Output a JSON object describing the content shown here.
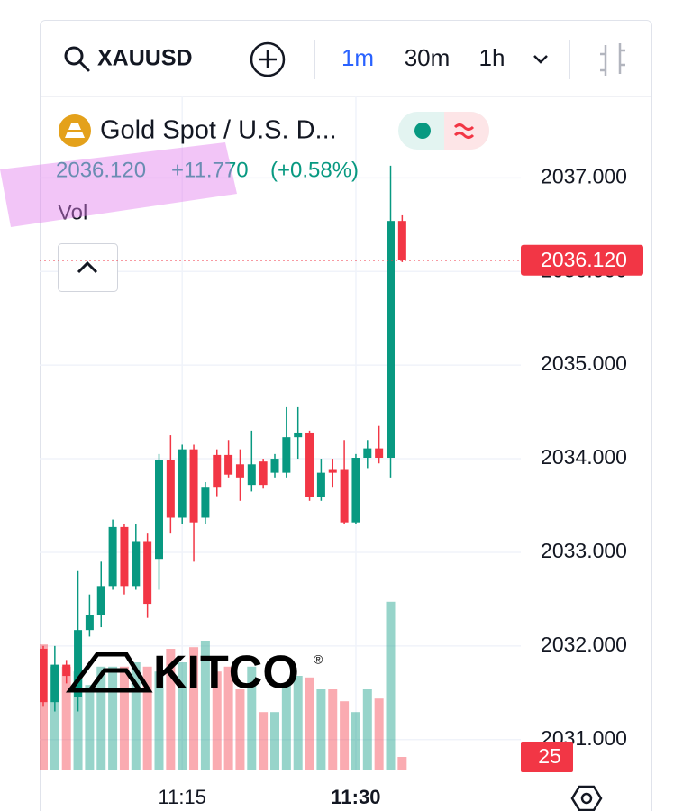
{
  "toolbar": {
    "symbol": "XAUUSD",
    "intervals": [
      "1m",
      "30m",
      "1h"
    ]
  },
  "legend": {
    "name": "Gold Spot / U.S. D...",
    "last": "2036.120",
    "change": "+11.770",
    "change_pct": "(+0.58%)",
    "volume_label": "Vol"
  },
  "watermark": {
    "text": "KITCO",
    "mark": "®"
  },
  "chart_data": {
    "type": "candlestick",
    "categories": [
      null,
      null,
      null,
      null,
      null,
      null,
      null,
      null,
      null,
      null,
      null,
      null,
      "11:15",
      null,
      null,
      null,
      null,
      null,
      null,
      null,
      null,
      null,
      null,
      null,
      null,
      null,
      null,
      "11:30",
      null,
      null,
      null,
      null
    ],
    "open": [
      2031.97,
      2031.4,
      2031.8,
      2031.45,
      2032.17,
      2032.33,
      2032.64,
      2033.27,
      2032.64,
      2033.12,
      2032.93,
      2033.99,
      2033.37,
      2034.1,
      2033.37,
      2034.04,
      2034.04,
      2033.94,
      2033.72,
      2033.97,
      2033.85,
      2033.85,
      2034.23,
      2034.28,
      2033.59,
      2033.88,
      2033.88,
      2033.32,
      2034.01,
      2034.11,
      2034.01,
      2036.54
    ],
    "high": [
      2032.0,
      2032.0,
      2031.85,
      2032.8,
      2032.55,
      2032.9,
      2033.35,
      2033.3,
      2033.3,
      2033.2,
      2034.05,
      2034.25,
      2034.15,
      2034.15,
      2033.75,
      2034.1,
      2034.2,
      2034.1,
      2034.3,
      2034.0,
      2034.05,
      2034.55,
      2034.55,
      2034.3,
      2034.0,
      2034.0,
      2034.2,
      2034.05,
      2034.2,
      2034.35,
      2037.13,
      2036.6
    ],
    "low": [
      2031.35,
      2031.3,
      2031.6,
      2031.3,
      2032.1,
      2032.2,
      2032.6,
      2032.55,
      2032.6,
      2032.3,
      2032.6,
      2033.2,
      2033.3,
      2032.9,
      2033.3,
      2033.6,
      2033.8,
      2033.55,
      2033.65,
      2033.68,
      2033.8,
      2033.8,
      2034.0,
      2033.55,
      2033.55,
      2033.7,
      2033.3,
      2033.3,
      2033.9,
      2033.95,
      2033.8,
      2036.1
    ],
    "close": [
      2031.4,
      2031.8,
      2031.68,
      2032.17,
      2032.33,
      2032.64,
      2033.27,
      2032.64,
      2033.12,
      2032.45,
      2033.99,
      2033.37,
      2034.1,
      2033.32,
      2033.7,
      2033.7,
      2033.83,
      2033.8,
      2033.94,
      2033.72,
      2034.0,
      2034.23,
      2034.28,
      2033.59,
      2033.85,
      2033.85,
      2033.32,
      2034.01,
      2034.11,
      2034.01,
      2036.54,
      2036.12
    ],
    "volume": [
      233,
      192,
      192,
      183,
      158,
      192,
      192,
      192,
      200,
      192,
      183,
      225,
      200,
      228,
      240,
      183,
      192,
      150,
      192,
      108,
      108,
      158,
      175,
      172,
      150,
      150,
      128,
      108,
      150,
      133,
      312,
      25
    ],
    "ylim": [
      2030.67,
      2037.87
    ],
    "yticks": [
      {
        "value": 2031,
        "label": "2031.000"
      },
      {
        "value": 2032,
        "label": "2032.000"
      },
      {
        "value": 2033,
        "label": "2033.000"
      },
      {
        "value": 2034,
        "label": "2034.000"
      },
      {
        "value": 2035,
        "label": "2035.000"
      },
      {
        "value": 2036,
        "label": "2036.000"
      },
      {
        "value": 2037,
        "label": "2037.000"
      }
    ],
    "last_price": {
      "value": 2036.12,
      "label": "2036.120"
    },
    "up_color": "#089981",
    "down_color": "#f23645",
    "grid": true
  }
}
